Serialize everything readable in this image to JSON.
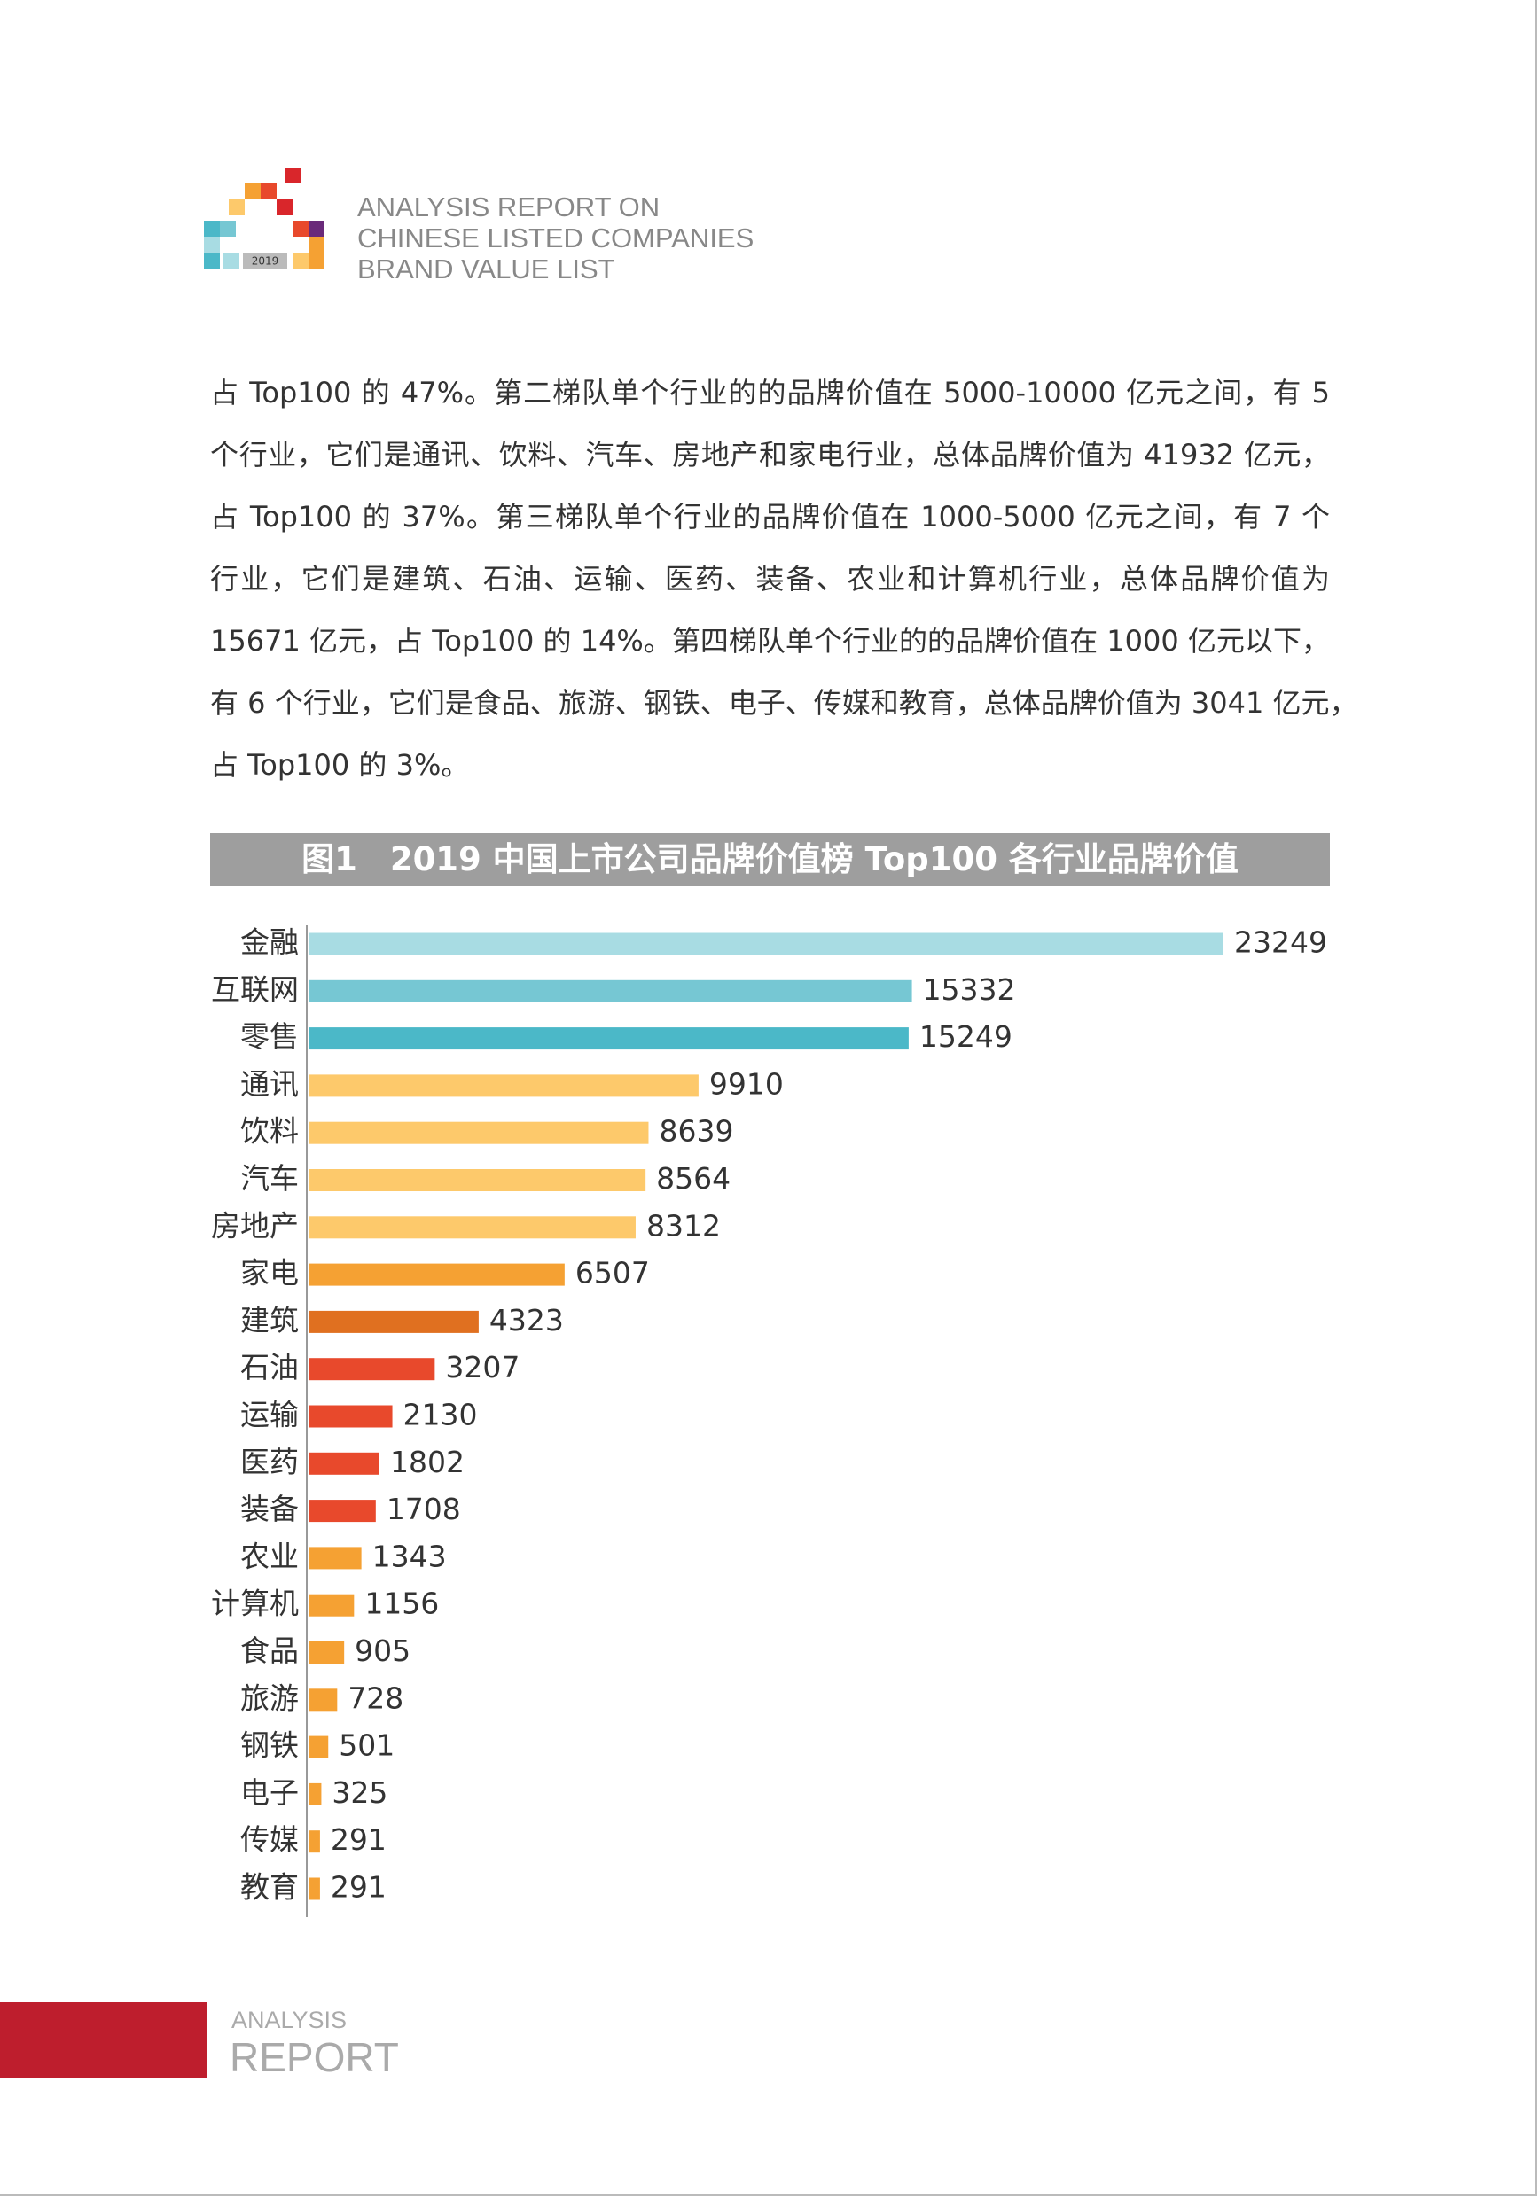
{
  "header": {
    "logo_year": "2019",
    "lines": [
      "ANALYSIS REPORT ON",
      "CHINESE LISTED COMPANIES",
      "BRAND VALUE LIST"
    ]
  },
  "paragraph": [
    "占 Top100 的 47%。第二梯队单个行业的的品牌价值在 5000-10000 亿元之间，有 5",
    "个行业，它们是通讯、饮料、汽车、房地产和家电行业，总体品牌价值为 41932 亿元，",
    "占 Top100 的 37%。第三梯队单个行业的品牌价值在 1000-5000 亿元之间，有 7 个",
    "行业，它们是建筑、石油、运输、医药、装备、农业和计算机行业，总体品牌价值为",
    "15671 亿元，占 Top100 的 14%。第四梯队单个行业的的品牌价值在 1000 亿元以下，",
    "有 6 个行业，它们是食品、旅游、钢铁、电子、传媒和教育，总体品牌价值为 3041 亿元，",
    "占 Top100 的 3%。"
  ],
  "chart_data": {
    "type": "hbar",
    "title": "图1　2019 中国上市公司品牌价值榜 Top100 各行业品牌价值",
    "categories": [
      "金融",
      "互联网",
      "零售",
      "通讯",
      "饮料",
      "汽车",
      "房地产",
      "家电",
      "建筑",
      "石油",
      "运输",
      "医药",
      "装备",
      "农业",
      "计算机",
      "食品",
      "旅游",
      "钢铁",
      "电子",
      "传媒",
      "教育"
    ],
    "values": [
      23249,
      15332,
      15249,
      9910,
      8639,
      8564,
      8312,
      6507,
      4323,
      3207,
      2130,
      1802,
      1708,
      1343,
      1156,
      905,
      728,
      501,
      325,
      291,
      291
    ],
    "colors": [
      "#a8dce3",
      "#76c7d3",
      "#4bb8c8",
      "#fdc96b",
      "#fdc96b",
      "#fdc96b",
      "#fdc96b",
      "#f5a133",
      "#e07020",
      "#e8492c",
      "#e8492c",
      "#e8492c",
      "#e8492c",
      "#f5a133",
      "#f5a133",
      "#f5a133",
      "#f5a133",
      "#f5a133",
      "#f5a133",
      "#f5a133",
      "#f5a133"
    ]
  },
  "footer": {
    "line1": "ANALYSIS",
    "line2": "REPORT"
  }
}
